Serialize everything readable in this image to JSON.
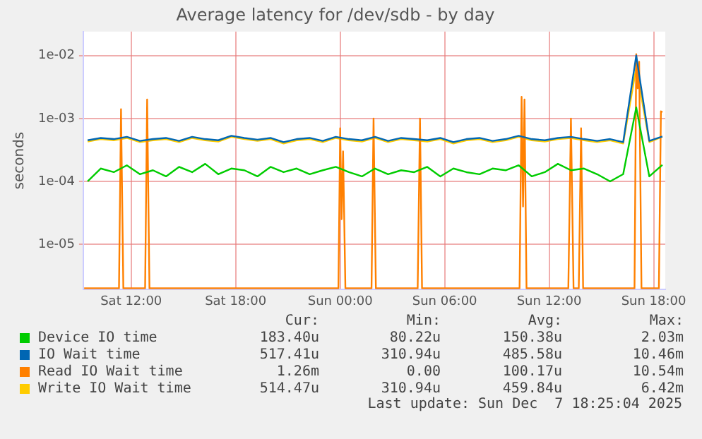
{
  "chart_data": {
    "type": "line",
    "title": "Average latency for /dev/sdb - by day",
    "ylabel": "seconds",
    "log": "y",
    "ylim": [
      1.9e-06,
      0.024
    ],
    "yticks": [
      {
        "value": 1e-05,
        "label": "1e-05"
      },
      {
        "value": 0.0001,
        "label": "1e-04"
      },
      {
        "value": 0.001,
        "label": "1e-03"
      },
      {
        "value": 0.01,
        "label": "1e-02"
      }
    ],
    "xlim": [
      "2025-12-06T09:15",
      "2025-12-07T18:40"
    ],
    "xticks": [
      {
        "value": "2025-12-06T12:00",
        "label": "Sat 12:00"
      },
      {
        "value": "2025-12-06T18:00",
        "label": "Sat 18:00"
      },
      {
        "value": "2025-12-07T00:00",
        "label": "Sun 00:00"
      },
      {
        "value": "2025-12-07T06:00",
        "label": "Sun 06:00"
      },
      {
        "value": "2025-12-07T12:00",
        "label": "Sun 12:00"
      },
      {
        "value": "2025-12-07T18:00",
        "label": "Sun 18:00"
      }
    ],
    "x": [
      "2025-12-06T09:30",
      "2025-12-06T10:15",
      "2025-12-06T11:00",
      "2025-12-06T11:45",
      "2025-12-06T12:30",
      "2025-12-06T13:15",
      "2025-12-06T14:00",
      "2025-12-06T14:45",
      "2025-12-06T15:30",
      "2025-12-06T16:15",
      "2025-12-06T17:00",
      "2025-12-06T17:45",
      "2025-12-06T18:30",
      "2025-12-06T19:15",
      "2025-12-06T20:00",
      "2025-12-06T20:45",
      "2025-12-06T21:30",
      "2025-12-06T22:15",
      "2025-12-06T23:00",
      "2025-12-06T23:45",
      "2025-12-07T00:30",
      "2025-12-07T01:15",
      "2025-12-07T02:00",
      "2025-12-07T02:45",
      "2025-12-07T03:30",
      "2025-12-07T04:15",
      "2025-12-07T05:00",
      "2025-12-07T05:45",
      "2025-12-07T06:30",
      "2025-12-07T07:15",
      "2025-12-07T08:00",
      "2025-12-07T08:45",
      "2025-12-07T09:30",
      "2025-12-07T10:15",
      "2025-12-07T11:00",
      "2025-12-07T11:45",
      "2025-12-07T12:30",
      "2025-12-07T13:15",
      "2025-12-07T14:00",
      "2025-12-07T14:45",
      "2025-12-07T15:30",
      "2025-12-07T16:15",
      "2025-12-07T17:00",
      "2025-12-07T17:45",
      "2025-12-07T18:30"
    ],
    "grid": true,
    "legend": "bottom",
    "marker": "none",
    "line_style": "solid",
    "series": [
      {
        "name": "Device IO time",
        "color": "#00cc00",
        "values": [
          0.0001,
          0.00016,
          0.00014,
          0.00018,
          0.00013,
          0.00015,
          0.00012,
          0.00017,
          0.00014,
          0.00019,
          0.00013,
          0.00016,
          0.00015,
          0.00012,
          0.00017,
          0.00014,
          0.00016,
          0.00013,
          0.00015,
          0.00017,
          0.00014,
          0.00012,
          0.00016,
          0.00013,
          0.00015,
          0.00014,
          0.00017,
          0.00012,
          0.00016,
          0.00014,
          0.00013,
          0.00016,
          0.00015,
          0.00018,
          0.00012,
          0.00014,
          0.00019,
          0.00015,
          0.00016,
          0.00013,
          0.0001,
          0.00013,
          0.0015,
          0.00012,
          0.000183
        ]
      },
      {
        "name": "IO Wait time",
        "color": "#0066b3",
        "values": [
          0.00045,
          0.00049,
          0.00047,
          0.00051,
          0.00044,
          0.00047,
          0.00049,
          0.00044,
          0.00051,
          0.00047,
          0.00045,
          0.00053,
          0.00049,
          0.00046,
          0.00049,
          0.00042,
          0.00047,
          0.00049,
          0.00044,
          0.00051,
          0.00047,
          0.00045,
          0.00051,
          0.00044,
          0.00049,
          0.00047,
          0.00045,
          0.00049,
          0.00042,
          0.00047,
          0.00049,
          0.00044,
          0.00047,
          0.00053,
          0.00047,
          0.00045,
          0.00049,
          0.00051,
          0.00047,
          0.00044,
          0.00047,
          0.00042,
          0.01,
          0.00044,
          0.000517
        ]
      },
      {
        "name": "Read IO Wait time",
        "color": "#ff8000",
        "x": [
          "2025-12-06T09:18",
          "2025-12-06T11:18",
          "2025-12-06T11:25",
          "2025-12-06T11:33",
          "2025-12-06T12:48",
          "2025-12-06T12:55",
          "2025-12-06T13:03",
          "2025-12-06T23:54",
          "2025-12-07T00:00",
          "2025-12-07T00:05",
          "2025-12-07T00:10",
          "2025-12-07T00:18",
          "2025-12-07T01:48",
          "2025-12-07T01:55",
          "2025-12-07T02:03",
          "2025-12-07T04:27",
          "2025-12-07T04:35",
          "2025-12-07T04:42",
          "2025-12-07T10:18",
          "2025-12-07T10:25",
          "2025-12-07T10:30",
          "2025-12-07T10:35",
          "2025-12-07T10:42",
          "2025-12-07T13:06",
          "2025-12-07T13:15",
          "2025-12-07T13:24",
          "2025-12-07T13:42",
          "2025-12-07T13:50",
          "2025-12-07T13:57",
          "2025-12-07T16:54",
          "2025-12-07T17:00",
          "2025-12-07T17:05",
          "2025-12-07T17:10",
          "2025-12-07T17:18",
          "2025-12-07T18:18",
          "2025-12-07T18:25",
          "2025-12-07T18:30"
        ],
        "values": [
          2e-06,
          2e-06,
          0.0014,
          2e-06,
          2e-06,
          0.002,
          2e-06,
          2e-06,
          0.0007,
          2.5e-05,
          0.0003,
          2e-06,
          2e-06,
          0.001,
          2e-06,
          2e-06,
          0.001,
          2e-06,
          2e-06,
          0.0022,
          4e-05,
          0.002,
          2e-06,
          2e-06,
          0.001,
          2e-06,
          2e-06,
          0.0007,
          2e-06,
          2e-06,
          0.0105,
          0.003,
          0.008,
          2e-06,
          2e-06,
          0.0013,
          0.00126
        ]
      },
      {
        "name": "Write IO Wait time",
        "color": "#ffcc00",
        "values": [
          0.00043,
          0.00047,
          0.00045,
          0.00049,
          0.00042,
          0.00045,
          0.00047,
          0.00042,
          0.00049,
          0.00045,
          0.00043,
          0.00051,
          0.00047,
          0.00044,
          0.00047,
          0.0004,
          0.00045,
          0.00047,
          0.00042,
          0.00049,
          0.00045,
          0.00043,
          0.00049,
          0.00042,
          0.00047,
          0.00045,
          0.00043,
          0.00047,
          0.0004,
          0.00045,
          0.00047,
          0.00042,
          0.00045,
          0.00051,
          0.00045,
          0.00043,
          0.00047,
          0.00049,
          0.00045,
          0.00042,
          0.00045,
          0.0004,
          0.0064,
          0.00042,
          0.000514
        ]
      }
    ],
    "annotations": [
      "Cur:",
      "Min:",
      "Avg:",
      "Max:",
      "183.40u",
      "80.22u",
      "150.38u",
      "2.03m",
      "517.41u",
      "310.94u",
      "485.58u",
      "10.46m",
      "1.26m",
      "0.00",
      "100.17u",
      "10.54m",
      "514.47u",
      "310.94u",
      "459.84u",
      "6.42m",
      "Last update: Sun Dec  7 18:25:04 2025"
    ]
  }
}
